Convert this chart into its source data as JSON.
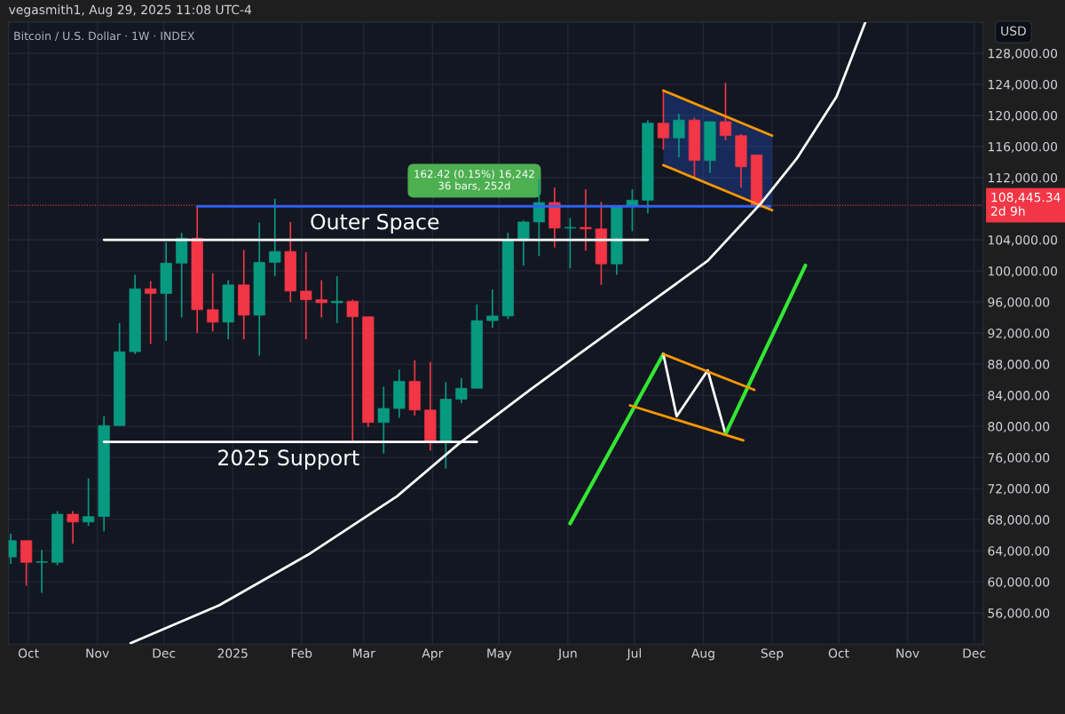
{
  "chart_data": {
    "type": "candlestick",
    "title": "vegasmith1, Aug 29, 2025 11:08 UTC-4",
    "subtitle": "Bitcoin / U.S. Dollar · 1W · INDEX",
    "x": [
      "2024-09-23",
      "2024-09-30",
      "2024-10-07",
      "2024-10-14",
      "2024-10-21",
      "2024-10-28",
      "2024-11-04",
      "2024-11-11",
      "2024-11-18",
      "2024-11-25",
      "2024-12-02",
      "2024-12-09",
      "2024-12-16",
      "2024-12-23",
      "2024-12-30",
      "2025-01-06",
      "2025-01-13",
      "2025-01-20",
      "2025-01-27",
      "2025-02-03",
      "2025-02-10",
      "2025-02-17",
      "2025-02-24",
      "2025-03-03",
      "2025-03-10",
      "2025-03-17",
      "2025-03-24",
      "2025-03-31",
      "2025-04-07",
      "2025-04-14",
      "2025-04-21",
      "2025-04-28",
      "2025-05-05",
      "2025-05-12",
      "2025-05-19",
      "2025-05-26",
      "2025-06-02",
      "2025-06-09",
      "2025-06-16",
      "2025-06-23",
      "2025-06-30",
      "2025-07-07",
      "2025-07-14",
      "2025-07-21",
      "2025-07-28",
      "2025-08-04",
      "2025-08-11",
      "2025-08-18",
      "2025-08-25"
    ],
    "ohlc": [
      [
        63200,
        66200,
        62300,
        65300
      ],
      [
        65300,
        65300,
        59500,
        62500
      ],
      [
        62500,
        64100,
        58600,
        62600
      ],
      [
        62500,
        69100,
        62100,
        68700
      ],
      [
        68700,
        69100,
        64900,
        67700
      ],
      [
        67700,
        73300,
        67200,
        68400
      ],
      [
        68400,
        81300,
        66500,
        80100
      ],
      [
        80100,
        93300,
        80100,
        89600
      ],
      [
        89600,
        99500,
        89300,
        97700
      ],
      [
        97700,
        98700,
        90600,
        97100
      ],
      [
        97100,
        103700,
        91000,
        101000
      ],
      [
        101000,
        104900,
        94000,
        104200
      ],
      [
        104200,
        108300,
        92000,
        95000
      ],
      [
        95000,
        99700,
        92200,
        93400
      ],
      [
        93400,
        98800,
        91200,
        98200
      ],
      [
        98200,
        102700,
        91200,
        94300
      ],
      [
        94300,
        106200,
        89100,
        101100
      ],
      [
        101100,
        109300,
        99300,
        102500
      ],
      [
        102500,
        106300,
        96000,
        97400
      ],
      [
        97400,
        102400,
        91200,
        96300
      ],
      [
        96300,
        98800,
        94000,
        95900
      ],
      [
        95900,
        99300,
        93300,
        96100
      ],
      [
        96100,
        96300,
        78100,
        94100
      ],
      [
        94100,
        94100,
        79900,
        80500
      ],
      [
        80500,
        85100,
        76500,
        82300
      ],
      [
        82300,
        87300,
        81100,
        85800
      ],
      [
        85800,
        88500,
        81400,
        82100
      ],
      [
        82100,
        88300,
        76900,
        78100
      ],
      [
        78100,
        85700,
        74600,
        83500
      ],
      [
        83500,
        86200,
        83000,
        84900
      ],
      [
        84900,
        95700,
        84900,
        93600
      ],
      [
        93600,
        97600,
        92700,
        94200
      ],
      [
        94200,
        104900,
        93800,
        103900
      ],
      [
        103900,
        106500,
        100700,
        106300
      ],
      [
        106300,
        111800,
        101900,
        108800
      ],
      [
        108800,
        110700,
        103000,
        105500
      ],
      [
        105500,
        106800,
        100300,
        105600
      ],
      [
        105600,
        110500,
        102600,
        105400
      ],
      [
        105400,
        108900,
        98200,
        100900
      ],
      [
        100900,
        108300,
        99500,
        108300
      ],
      [
        108300,
        110500,
        105100,
        109100
      ],
      [
        109100,
        119400,
        107400,
        119000
      ],
      [
        119000,
        123200,
        115600,
        117100
      ],
      [
        117100,
        120200,
        114600,
        119400
      ],
      [
        119400,
        119700,
        112100,
        114200
      ],
      [
        114200,
        119200,
        112600,
        119200
      ],
      [
        119200,
        124200,
        116800,
        117400
      ],
      [
        117400,
        117600,
        110700,
        113400
      ],
      [
        114900,
        114900,
        108200,
        108445.34
      ]
    ],
    "colors": [
      "#089981",
      "#f23645",
      "#089981",
      "#089981",
      "#f23645",
      "#089981",
      "#089981",
      "#089981",
      "#089981",
      "#f23645",
      "#089981",
      "#089981",
      "#f23645",
      "#f23645",
      "#089981",
      "#f23645",
      "#089981",
      "#089981",
      "#f23645",
      "#f23645",
      "#f23645",
      "#089981",
      "#f23645",
      "#f23645",
      "#089981",
      "#089981",
      "#f23645",
      "#f23645",
      "#089981",
      "#089981",
      "#089981",
      "#089981",
      "#089981",
      "#089981",
      "#089981",
      "#f23645",
      "#089981",
      "#f23645",
      "#f23645",
      "#089981",
      "#089981",
      "#089981",
      "#f23645",
      "#089981",
      "#f23645",
      "#089981",
      "#f23645",
      "#f23645",
      "#f23645"
    ],
    "series": [
      {
        "type": "line",
        "color": "#ffffff",
        "x": [
          "2024-11-04",
          "2025-07-07"
        ],
        "values": [
          104000,
          104000
        ]
      },
      {
        "type": "line",
        "color": "#ffffff",
        "x": [
          "2024-11-04",
          "2025-04-21"
        ],
        "values": [
          78000,
          78000
        ]
      },
      {
        "type": "line",
        "color": "#2962ff",
        "x": [
          "2024-12-16",
          "2025-08-31"
        ],
        "values": [
          108300,
          108300
        ]
      },
      {
        "type": "line",
        "color": "#ff9800",
        "x": [
          "2025-07-14",
          "2025-09-01"
        ],
        "values": [
          123200,
          117400
        ]
      },
      {
        "type": "line",
        "color": "#ff9800",
        "x": [
          "2025-07-14",
          "2025-09-01"
        ],
        "values": [
          113600,
          107800
        ]
      },
      {
        "type": "line",
        "color": "#ffffff",
        "x": [
          "2024-11-16",
          "2024-12-26",
          "2025-02-04",
          "2025-03-16",
          "2025-04-13",
          "2025-05-15",
          "2025-06-06",
          "2025-07-06",
          "2025-08-03",
          "2025-08-27",
          "2025-09-12",
          "2025-09-30",
          "2025-10-13"
        ],
        "values": [
          52100,
          57000,
          63500,
          71000,
          77800,
          84700,
          89300,
          95500,
          101300,
          108700,
          114400,
          122400,
          132000
        ]
      },
      {
        "type": "line",
        "color": "#33e633",
        "x": [
          "2025-06-02",
          "2025-07-14"
        ],
        "values": [
          67500,
          89300
        ]
      },
      {
        "type": "line",
        "color": "#ffffff",
        "x": [
          "2025-07-14",
          "2025-07-20",
          "2025-08-03",
          "2025-08-11"
        ],
        "values": [
          89300,
          81300,
          87200,
          79000
        ]
      },
      {
        "type": "line",
        "color": "#33e633",
        "x": [
          "2025-08-11",
          "2025-09-16"
        ],
        "values": [
          79000,
          100700
        ]
      },
      {
        "type": "line",
        "color": "#ff9800",
        "x": [
          "2025-07-14",
          "2025-08-24"
        ],
        "values": [
          89300,
          84700
        ]
      },
      {
        "type": "line",
        "color": "#ff9800",
        "x": [
          "2025-06-29",
          "2025-08-19"
        ],
        "values": [
          82700,
          78200
        ]
      }
    ],
    "annotations": [
      {
        "text": "Outer Space",
        "x": "2025-03-06",
        "y": 104000
      },
      {
        "text": "2025 Support",
        "x": "2025-01-26",
        "y": 78000
      },
      "162.42 (0.15%) 16,242\n36 bars, 252d",
      "USD"
    ],
    "ref_lines": [
      {
        "axis": "y",
        "value": 108445.34,
        "label": "108,445.34\n2d 9h",
        "color": "#f23645",
        "line_style": "dotted"
      }
    ],
    "xlim": [
      "2024-09-22",
      "2025-12-05"
    ],
    "xticks": [
      {
        "value": "2024-10-01",
        "label": "Oct"
      },
      {
        "value": "2024-11-01",
        "label": "Nov"
      },
      {
        "value": "2024-12-01",
        "label": "Dec"
      },
      {
        "value": "2025-01-01",
        "label": "2025"
      },
      {
        "value": "2025-02-01",
        "label": "Feb"
      },
      {
        "value": "2025-03-01",
        "label": "Mar"
      },
      {
        "value": "2025-04-01",
        "label": "Apr"
      },
      {
        "value": "2025-05-01",
        "label": "May"
      },
      {
        "value": "2025-06-01",
        "label": "Jun"
      },
      {
        "value": "2025-07-01",
        "label": "Jul"
      },
      {
        "value": "2025-08-01",
        "label": "Aug"
      },
      {
        "value": "2025-09-01",
        "label": "Sep"
      },
      {
        "value": "2025-10-01",
        "label": "Oct"
      },
      {
        "value": "2025-11-01",
        "label": "Nov"
      },
      {
        "value": "2025-12-01",
        "label": "Dec"
      }
    ],
    "ylim": [
      52000,
      132000
    ],
    "yticks": [
      {
        "value": 56000,
        "label": "56,000.00"
      },
      {
        "value": 60000,
        "label": "60,000.00"
      },
      {
        "value": 64000,
        "label": "64,000.00"
      },
      {
        "value": 68000,
        "label": "68,000.00"
      },
      {
        "value": 72000,
        "label": "72,000.00"
      },
      {
        "value": 76000,
        "label": "76,000.00"
      },
      {
        "value": 80000,
        "label": "80,000.00"
      },
      {
        "value": 84000,
        "label": "84,000.00"
      },
      {
        "value": 88000,
        "label": "88,000.00"
      },
      {
        "value": 92000,
        "label": "92,000.00"
      },
      {
        "value": 96000,
        "label": "96,000.00"
      },
      {
        "value": 100000,
        "label": "100,000.00"
      },
      {
        "value": 104000,
        "label": "104,000.00"
      },
      {
        "value": 112000,
        "label": "112,000.00"
      },
      {
        "value": 116000,
        "label": "116,000.00"
      },
      {
        "value": 120000,
        "label": "120,000.00"
      },
      {
        "value": 124000,
        "label": "124,000.00"
      },
      {
        "value": 128000,
        "label": "128,000.00"
      }
    ],
    "grid": true,
    "line_style": "solid"
  }
}
